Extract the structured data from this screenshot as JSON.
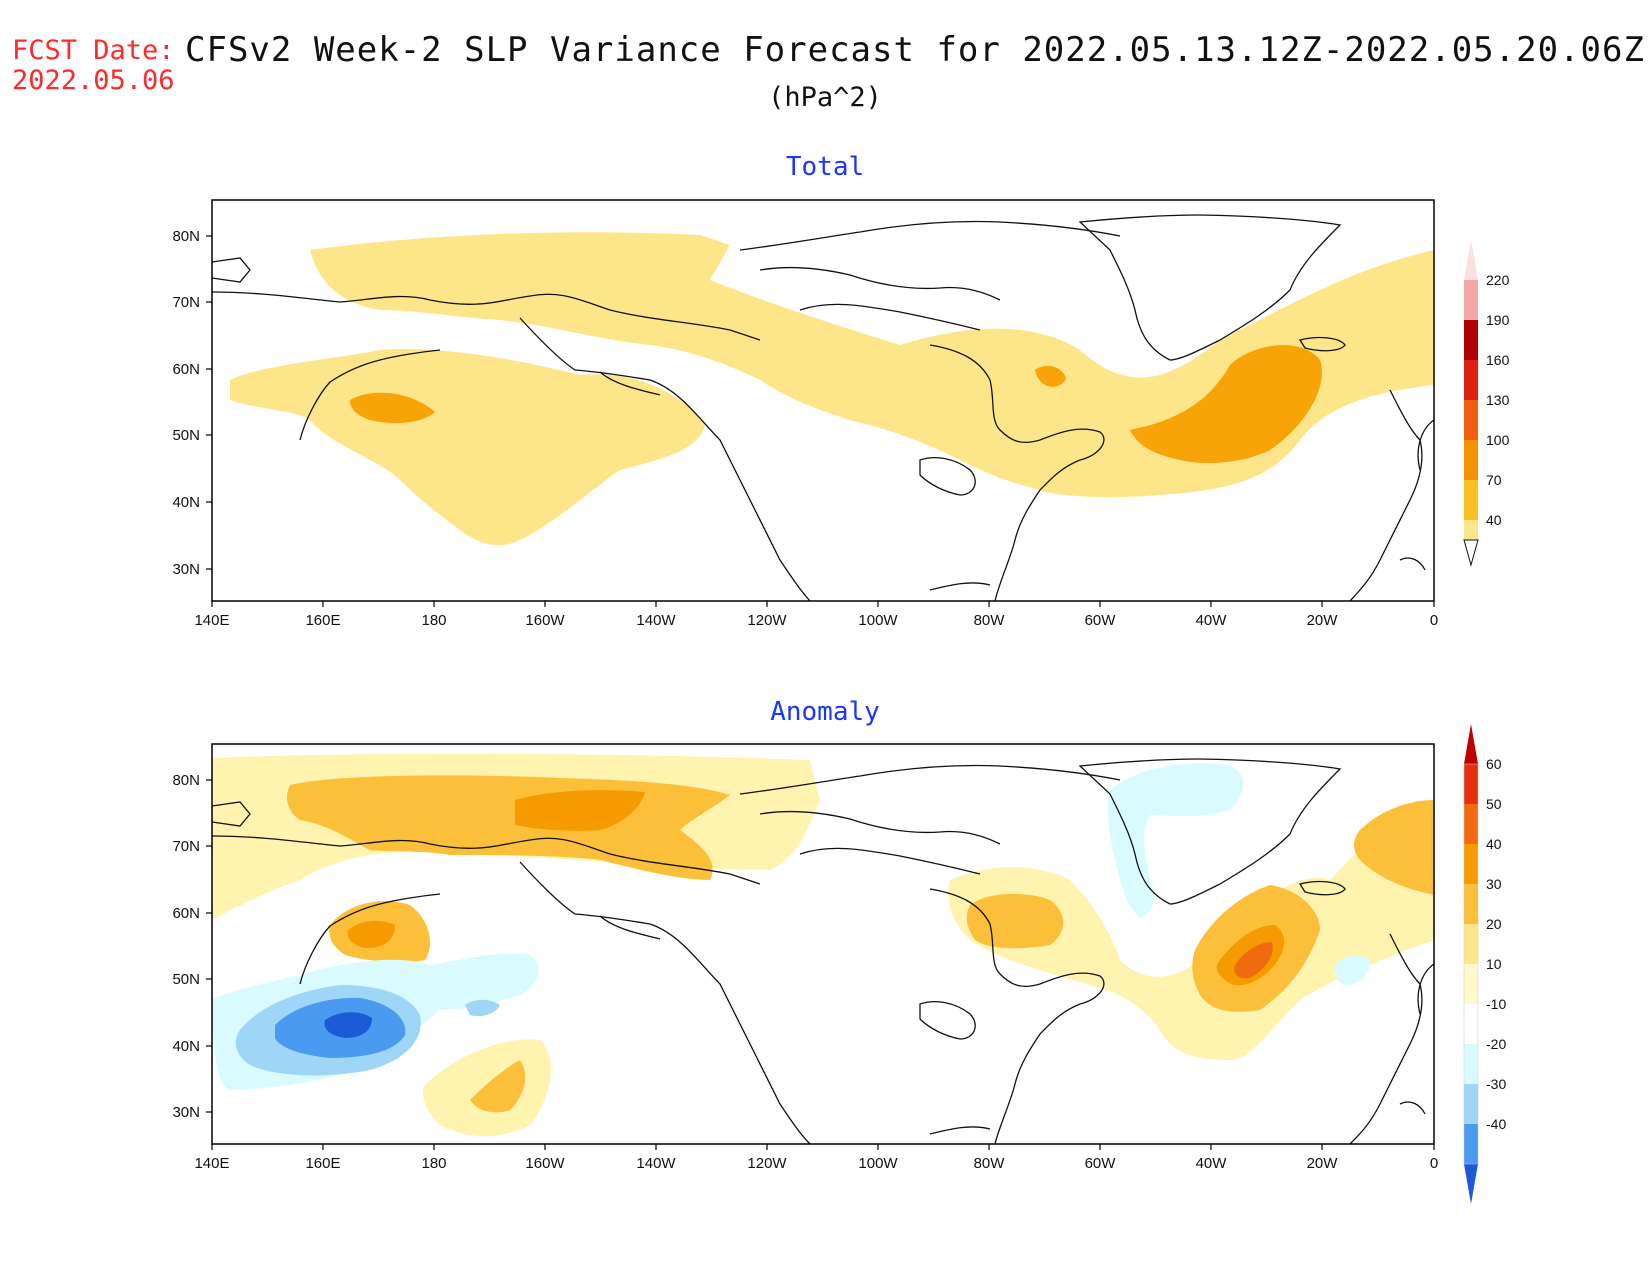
{
  "header": {
    "fcst_label": "FCST Date:",
    "fcst_date": "2022.05.06",
    "title": "CFSv2 Week-2 SLP Variance Forecast for 2022.05.13.12Z-2022.05.20.06Z",
    "units": "(hPa^2)"
  },
  "axes": {
    "lat_labels": [
      "80N",
      "70N",
      "60N",
      "50N",
      "40N",
      "30N"
    ],
    "lon_labels": [
      "140E",
      "160E",
      "180",
      "160W",
      "140W",
      "120W",
      "100W",
      "80W",
      "60W",
      "40W",
      "20W",
      "0"
    ]
  },
  "panels": [
    {
      "title": "Total",
      "colorbar": {
        "levels": [
          "40",
          "70",
          "100",
          "130",
          "160",
          "190",
          "220"
        ],
        "colors": [
          "#fde68a",
          "#fbbf24",
          "#f59200",
          "#f06010",
          "#e02010",
          "#b00000",
          "#f4a5a5",
          "#fce0e0"
        ]
      }
    },
    {
      "title": "Anomaly",
      "colorbar": {
        "levels": [
          "60",
          "50",
          "40",
          "30",
          "20",
          "10",
          "-10",
          "-20",
          "-30",
          "-40"
        ],
        "colors": [
          "#c00000",
          "#e83010",
          "#f06a10",
          "#f59a00",
          "#fbbf3a",
          "#fde68a",
          "#fff8c8",
          "#ffffff",
          "#d9fbff",
          "#9fd6f8",
          "#4a9af0",
          "#1c5ad8"
        ]
      }
    }
  ]
}
